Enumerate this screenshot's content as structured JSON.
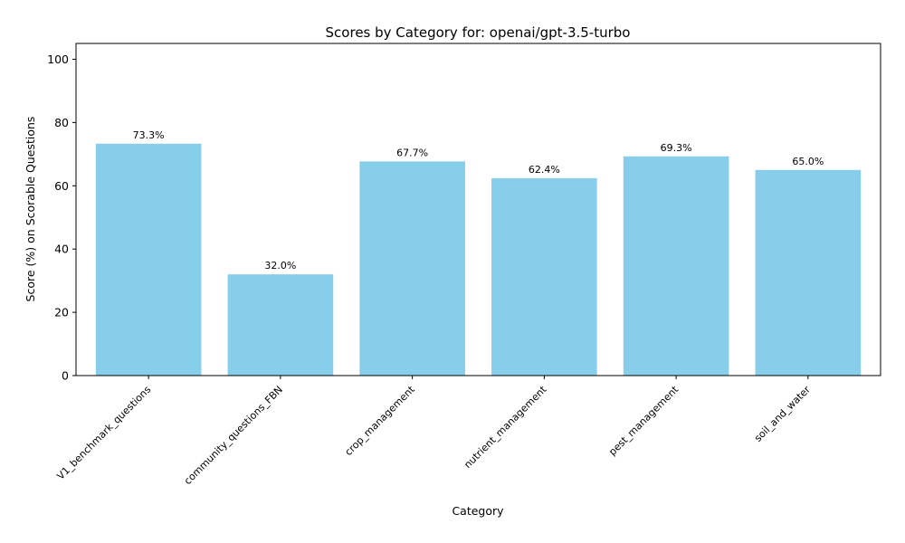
{
  "chart_data": {
    "type": "bar",
    "title": "Scores by Category for: openai/gpt-3.5-turbo",
    "xlabel": "Category",
    "ylabel": "Score (%) on Scorable Questions",
    "categories": [
      "V1_benchmark_questions",
      "community_questions_FBN",
      "crop_management",
      "nutrient_management",
      "pest_management",
      "soil_and_water"
    ],
    "values": [
      73.3,
      32.0,
      67.7,
      62.4,
      69.3,
      65.0
    ],
    "data_labels": [
      "73.3%",
      "32.0%",
      "67.7%",
      "62.4%",
      "69.3%",
      "65.0%"
    ],
    "ylim": [
      0,
      105
    ],
    "yticks": [
      0,
      20,
      40,
      60,
      80,
      100
    ],
    "bar_color": "#87CEEB",
    "grid": false,
    "legend": "none"
  }
}
